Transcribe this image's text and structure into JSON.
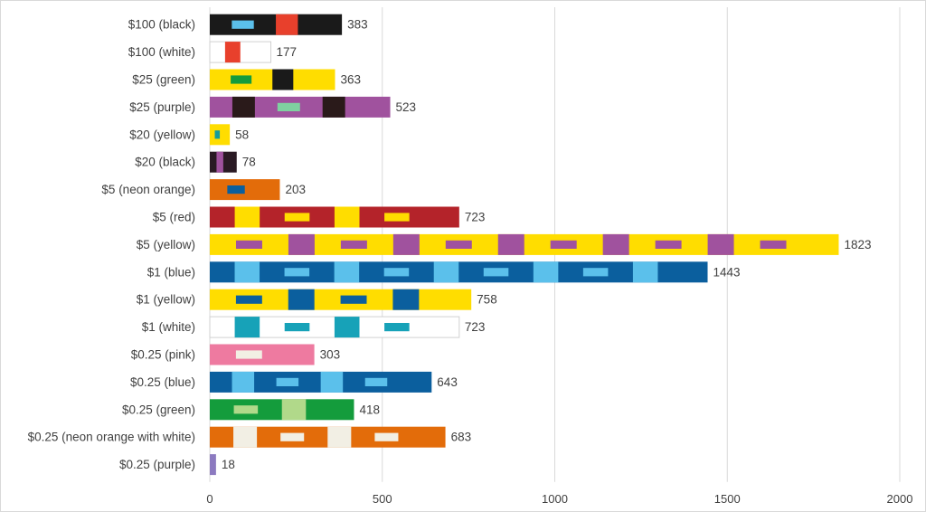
{
  "chart_data": {
    "type": "bar",
    "orientation": "horizontal",
    "title": "",
    "xlabel": "",
    "ylabel": "",
    "xlim": [
      0,
      2000
    ],
    "x_ticks": [
      0,
      500,
      1000,
      1500,
      2000
    ],
    "grid": true,
    "legend": "none",
    "categories": [
      "$100 (black)",
      "$100 (white)",
      "$25 (green)",
      "$25 (purple)",
      "$20 (yellow)",
      "$20 (black)",
      "$5 (neon orange)",
      "$5 (red)",
      "$5 (yellow)",
      "$1 (blue)",
      "$1 (yellow)",
      "$1 (white)",
      "$0.25 (pink)",
      "$0.25 (blue)",
      "$0.25 (green)",
      "$0.25 (neon orange with white)",
      "$0.25 (purple)"
    ],
    "values": [
      383,
      177,
      363,
      523,
      58,
      78,
      203,
      723,
      1823,
      1443,
      758,
      723,
      303,
      643,
      418,
      683,
      18
    ],
    "value_labels": [
      "383",
      "177",
      "363",
      "523",
      "58",
      "78",
      "203",
      "723",
      "1823",
      "1443",
      "758",
      "723",
      "303",
      "643",
      "418",
      "683",
      "18"
    ],
    "bar_colors": [
      {
        "base": "#1a1a1a",
        "accents": [
          "#5bc0eb",
          "#e8402c"
        ]
      },
      {
        "base": "#ffffff",
        "accents": [
          "#e8402c"
        ]
      },
      {
        "base": "#ffdd00",
        "accents": [
          "#149c3c",
          "#1a1a1a"
        ]
      },
      {
        "base": "#a0529e",
        "accents": [
          "#2a1a1a",
          "#7fd1a0"
        ]
      },
      {
        "base": "#ffdd00",
        "accents": [
          "#149c9c"
        ]
      },
      {
        "base": "#2a1a24",
        "accents": [
          "#a0529e"
        ]
      },
      {
        "base": "#e36c0a",
        "accents": [
          "#0b5f9e"
        ]
      },
      {
        "base": "#b4232a",
        "accents": [
          "#ffdd00"
        ]
      },
      {
        "base": "#ffdd00",
        "accents": [
          "#a0529e"
        ]
      },
      {
        "base": "#0b5f9e",
        "accents": [
          "#5bc0eb"
        ]
      },
      {
        "base": "#ffdd00",
        "accents": [
          "#0b5f9e"
        ]
      },
      {
        "base": "#ffffff",
        "accents": [
          "#17a2b8"
        ]
      },
      {
        "base": "#ee7aa0",
        "accents": [
          "#f2efe4"
        ]
      },
      {
        "base": "#0b5f9e",
        "accents": [
          "#5bc0eb"
        ]
      },
      {
        "base": "#149c3c",
        "accents": [
          "#b1d98a"
        ]
      },
      {
        "base": "#e36c0a",
        "accents": [
          "#f2efe4"
        ]
      },
      {
        "base": "#8c7ac0",
        "accents": []
      }
    ]
  }
}
